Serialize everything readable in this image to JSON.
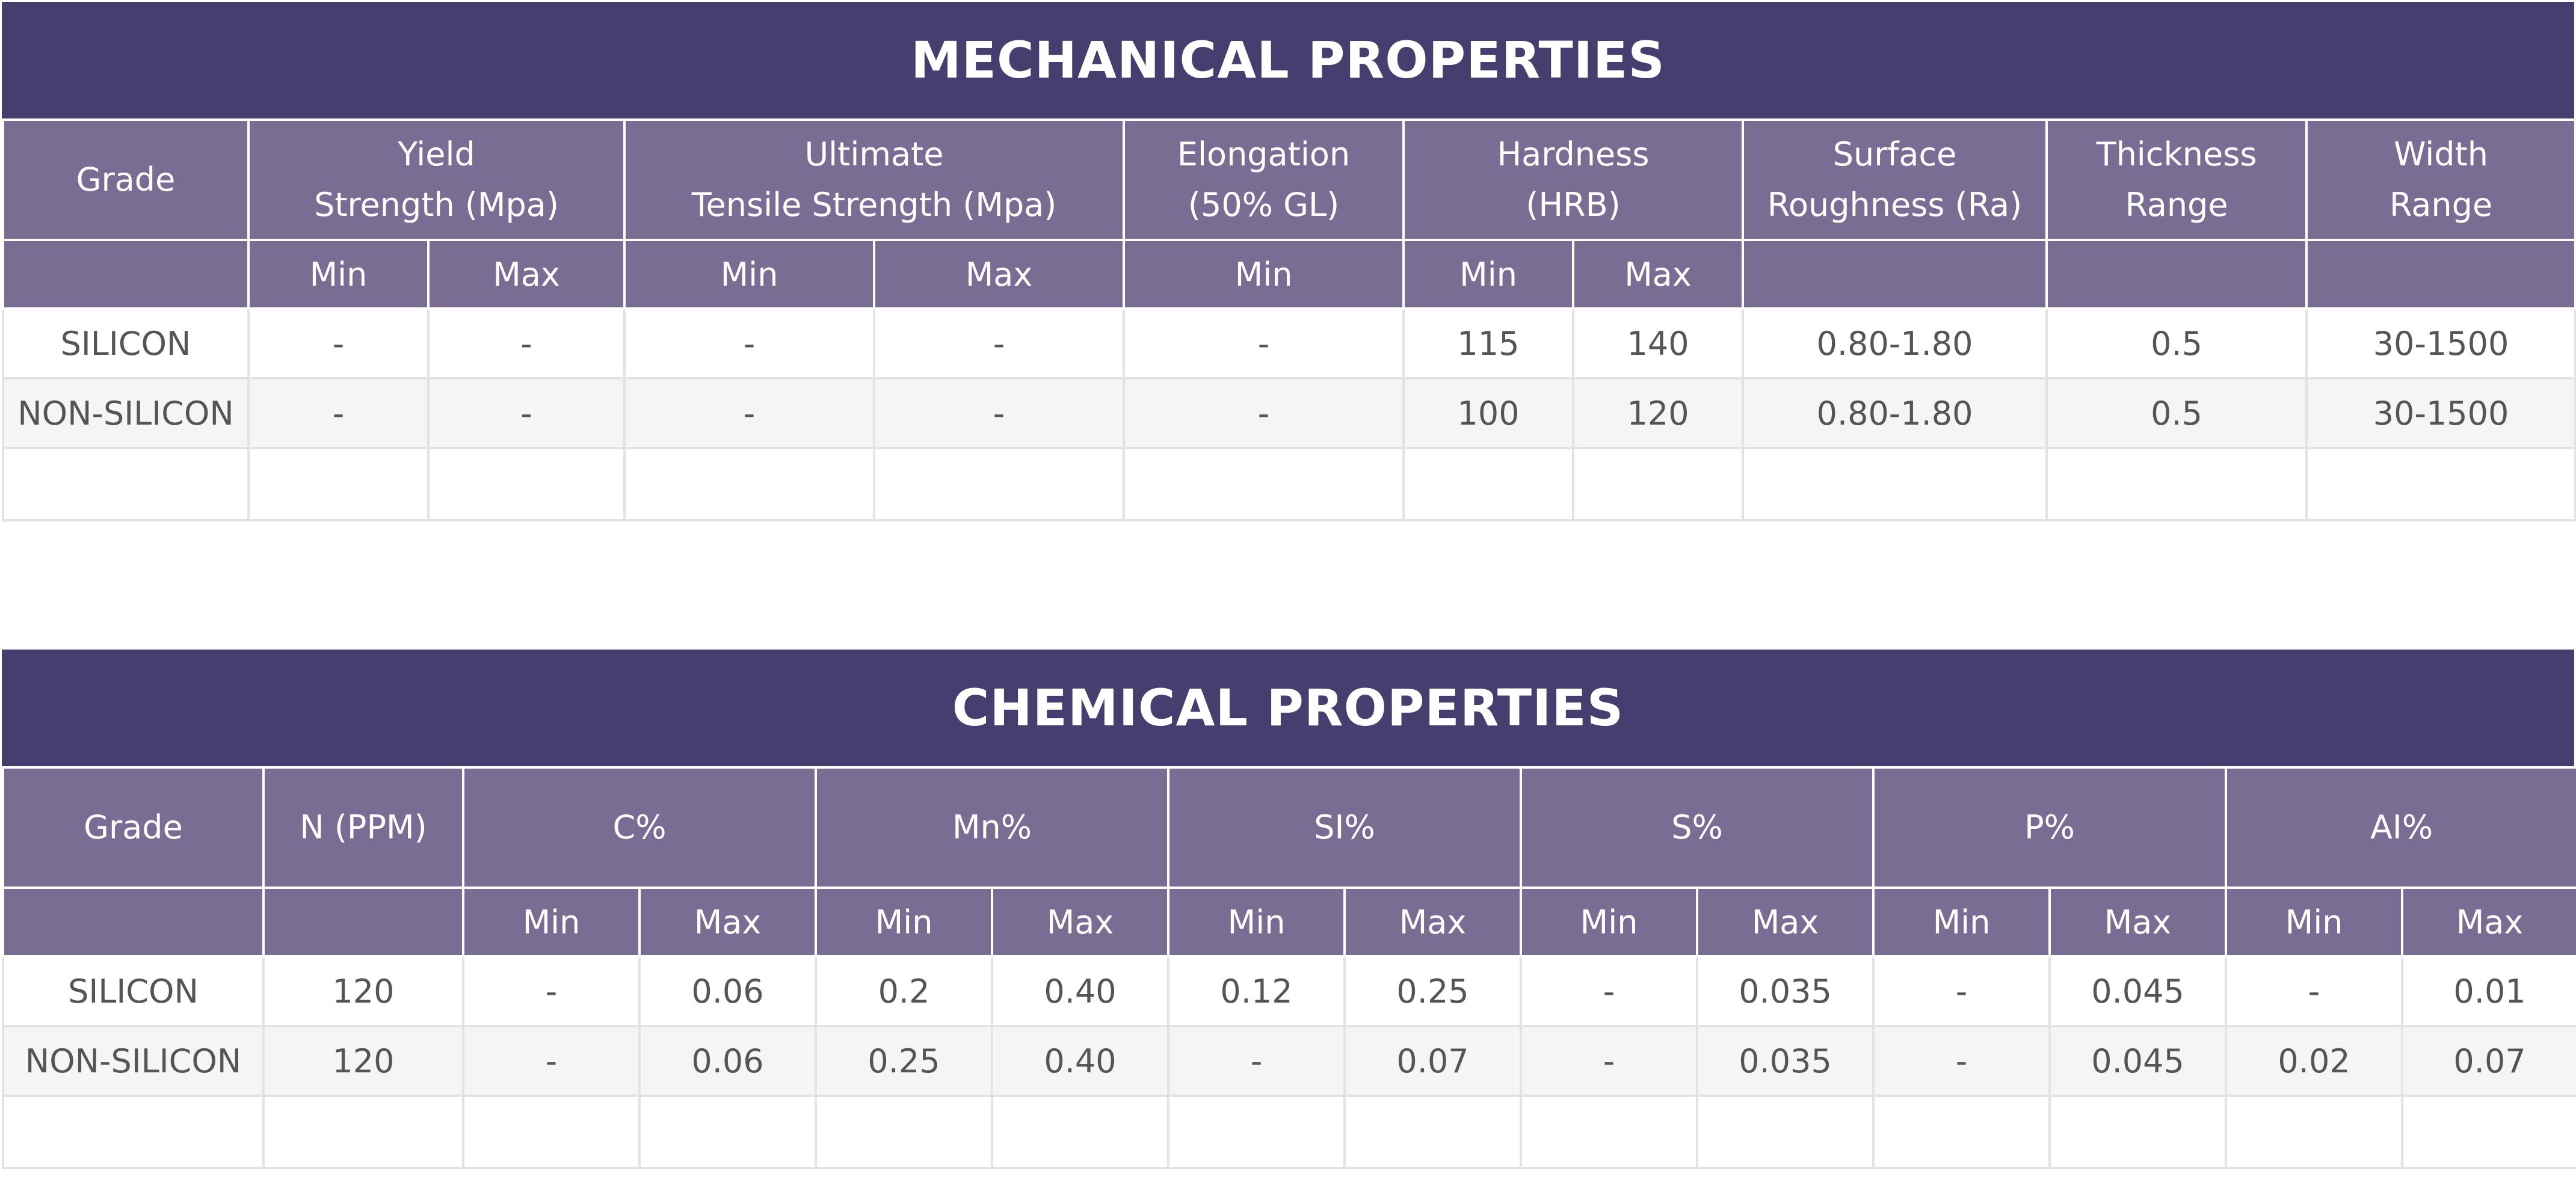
{
  "mechanical": {
    "title": "MECHANICAL PROPERTIES",
    "headers": {
      "grade": "Grade",
      "yield_line1": "Yield",
      "yield_line2": "Strength (Mpa)",
      "uts_line1": "Ultimate",
      "uts_line2": "Tensile Strength (Mpa)",
      "elong_line1": "Elongation",
      "elong_line2": "(50% GL)",
      "hard_line1": "Hardness",
      "hard_line2": "(HRB)",
      "surf_line1": "Surface",
      "surf_line2": "Roughness (Ra)",
      "thick_line1": "Thickness",
      "thick_line2": "Range",
      "width_line1": "Width",
      "width_line2": "Range"
    },
    "subheaders": [
      "",
      "Min",
      "Max",
      "Min",
      "Max",
      "Min",
      "Min",
      "Max",
      "",
      "",
      ""
    ],
    "rows": [
      [
        "SILICON",
        "-",
        "-",
        "-",
        "-",
        "-",
        "115",
        "140",
        "0.80-1.80",
        "0.5",
        "30-1500"
      ],
      [
        "NON-SILICON",
        "-",
        "-",
        "-",
        "-",
        "-",
        "100",
        "120",
        "0.80-1.80",
        "0.5",
        "30-1500"
      ],
      [
        "",
        "",
        "",
        "",
        "",
        "",
        "",
        "",
        "",
        "",
        ""
      ]
    ]
  },
  "chemical": {
    "title": "CHEMICAL PROPERTIES",
    "headers": {
      "grade": "Grade",
      "n": "N (PPM)",
      "c": "C%",
      "mn": "Mn%",
      "si": "SI%",
      "s": "S%",
      "p": "P%",
      "al": "AI%"
    },
    "subheaders": [
      "",
      "",
      "Min",
      "Max",
      "Min",
      "Max",
      "Min",
      "Max",
      "Min",
      "Max",
      "Min",
      "Max",
      "Min",
      "Max"
    ],
    "rows": [
      [
        "SILICON",
        "120",
        "-",
        "0.06",
        "0.2",
        "0.40",
        "0.12",
        "0.25",
        "-",
        "0.035",
        "-",
        "0.045",
        "-",
        "0.01"
      ],
      [
        "NON-SILICON",
        "120",
        "-",
        "0.06",
        "0.25",
        "0.40",
        "-",
        "0.07",
        "-",
        "0.035",
        "-",
        "0.045",
        "0.02",
        "0.07"
      ],
      [
        "",
        "",
        "",
        "",
        "",
        "",
        "",
        "",
        "",
        "",
        "",
        "",
        "",
        ""
      ]
    ]
  }
}
